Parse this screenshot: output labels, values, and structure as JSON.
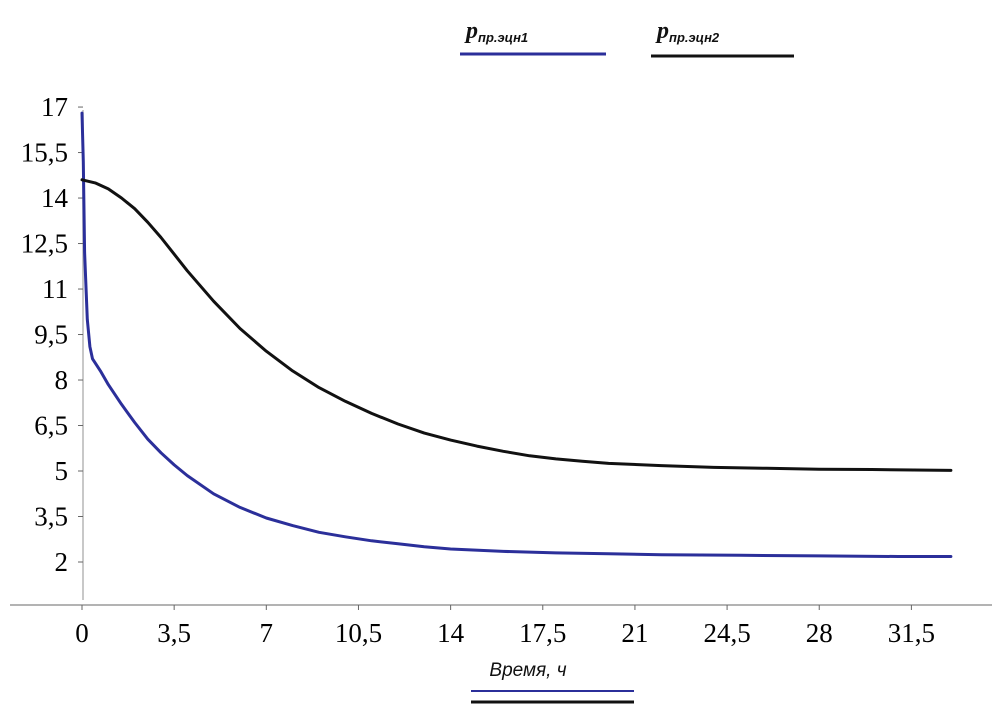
{
  "chart_data": {
    "type": "line",
    "title": "",
    "xlabel": "Время, ч",
    "ylabel": "",
    "xlim": [
      0,
      33
    ],
    "ylim": [
      0.6,
      17.8
    ],
    "x_ticks": [
      "0",
      "3,5",
      "7",
      "10,5",
      "14",
      "17,5",
      "21",
      "24,5",
      "28",
      "31,5"
    ],
    "y_ticks": [
      "17",
      "15,5",
      "14",
      "12,5",
      "11",
      "9,5",
      "8",
      "6,5",
      "5",
      "3,5",
      "2"
    ],
    "grid": false,
    "legend_position": "top-center",
    "series": [
      {
        "name": "p",
        "name_sub": "пр.эцн1",
        "color": "#2b2f9a",
        "points": [
          [
            0,
            16.8
          ],
          [
            0.05,
            15.2
          ],
          [
            0.1,
            12.2
          ],
          [
            0.2,
            10.0
          ],
          [
            0.3,
            9.1
          ],
          [
            0.4,
            8.7
          ],
          [
            0.7,
            8.3
          ],
          [
            1.0,
            7.85
          ],
          [
            1.5,
            7.2
          ],
          [
            2,
            6.6
          ],
          [
            2.5,
            6.05
          ],
          [
            3,
            5.6
          ],
          [
            3.5,
            5.2
          ],
          [
            4,
            4.85
          ],
          [
            5,
            4.25
          ],
          [
            6,
            3.8
          ],
          [
            7,
            3.45
          ],
          [
            8,
            3.2
          ],
          [
            9,
            2.98
          ],
          [
            10,
            2.83
          ],
          [
            11,
            2.7
          ],
          [
            12,
            2.6
          ],
          [
            13,
            2.5
          ],
          [
            14,
            2.43
          ],
          [
            16,
            2.35
          ],
          [
            18,
            2.3
          ],
          [
            20,
            2.27
          ],
          [
            22,
            2.24
          ],
          [
            25,
            2.22
          ],
          [
            28,
            2.2
          ],
          [
            31,
            2.18
          ],
          [
            33,
            2.18
          ]
        ]
      },
      {
        "name": "p",
        "name_sub": "пр.эцн2",
        "color": "#111111",
        "points": [
          [
            0,
            14.6
          ],
          [
            0.5,
            14.5
          ],
          [
            1,
            14.3
          ],
          [
            1.5,
            14.0
          ],
          [
            2,
            13.65
          ],
          [
            2.5,
            13.2
          ],
          [
            3,
            12.7
          ],
          [
            3.5,
            12.15
          ],
          [
            4,
            11.6
          ],
          [
            5,
            10.6
          ],
          [
            6,
            9.7
          ],
          [
            7,
            8.95
          ],
          [
            8,
            8.3
          ],
          [
            9,
            7.75
          ],
          [
            10,
            7.3
          ],
          [
            11,
            6.9
          ],
          [
            12,
            6.55
          ],
          [
            13,
            6.25
          ],
          [
            14,
            6.02
          ],
          [
            15,
            5.82
          ],
          [
            16,
            5.65
          ],
          [
            17,
            5.5
          ],
          [
            18,
            5.4
          ],
          [
            19,
            5.32
          ],
          [
            20,
            5.25
          ],
          [
            22,
            5.18
          ],
          [
            24,
            5.12
          ],
          [
            26,
            5.09
          ],
          [
            28,
            5.06
          ],
          [
            30,
            5.05
          ],
          [
            33,
            5.02
          ]
        ]
      }
    ]
  }
}
